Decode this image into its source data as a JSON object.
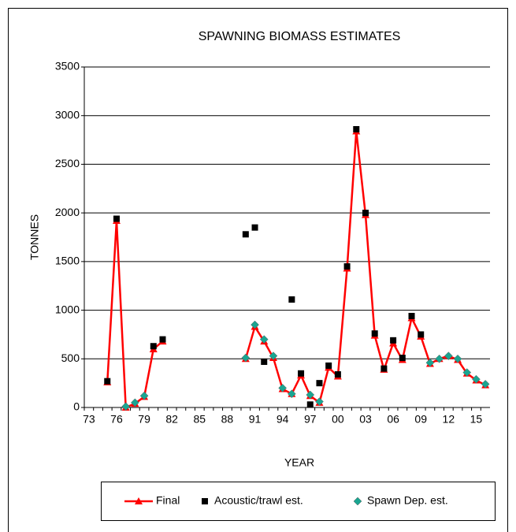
{
  "chart_data": {
    "type": "line",
    "title": "SPAWNING BIOMASS ESTIMATES",
    "x_label": "YEAR",
    "y_label": "TONNES",
    "categories": [
      "73",
      null,
      null,
      "76",
      null,
      null,
      "79",
      null,
      null,
      "82",
      null,
      null,
      "85",
      null,
      null,
      "88",
      null,
      null,
      "91",
      null,
      null,
      "94",
      null,
      null,
      "97",
      null,
      null,
      "00",
      null,
      null,
      "03",
      null,
      null,
      "06",
      null,
      null,
      "09",
      null,
      null,
      "12",
      null,
      null,
      "15",
      null
    ],
    "series": [
      {
        "name": "Final",
        "color": "#ff0000",
        "marker": "triangle",
        "values": [
          null,
          null,
          260,
          1920,
          0,
          40,
          110,
          600,
          680,
          null,
          null,
          null,
          null,
          null,
          null,
          null,
          null,
          500,
          830,
          680,
          510,
          190,
          140,
          330,
          120,
          50,
          410,
          320,
          1430,
          2840,
          1980,
          740,
          390,
          660,
          490,
          920,
          730,
          450,
          500,
          530,
          490,
          350,
          280,
          230
        ]
      },
      {
        "name": "Acoustic/trawl est.",
        "color": "#000000",
        "marker": "square",
        "values": [
          null,
          null,
          270,
          1940,
          null,
          null,
          null,
          630,
          700,
          null,
          null,
          null,
          null,
          null,
          null,
          null,
          null,
          1780,
          1850,
          470,
          null,
          null,
          1110,
          350,
          30,
          250,
          430,
          340,
          1450,
          2860,
          2000,
          760,
          400,
          690,
          510,
          940,
          750,
          null,
          null,
          null,
          null,
          null,
          null,
          null
        ]
      },
      {
        "name": "Spawn Dep. est.",
        "color": "#1aa591",
        "marker": "diamond",
        "values": [
          null,
          null,
          null,
          null,
          10,
          50,
          120,
          null,
          null,
          null,
          null,
          null,
          null,
          null,
          null,
          null,
          null,
          510,
          850,
          700,
          530,
          200,
          140,
          null,
          130,
          60,
          null,
          null,
          null,
          null,
          null,
          null,
          null,
          null,
          null,
          null,
          null,
          460,
          500,
          530,
          500,
          360,
          290,
          240
        ]
      }
    ],
    "ylim": [
      0,
      3500
    ],
    "yticks": [
      0,
      500,
      1000,
      1500,
      2000,
      2500,
      3000,
      3500
    ],
    "grid": true,
    "legend": "bottom"
  }
}
